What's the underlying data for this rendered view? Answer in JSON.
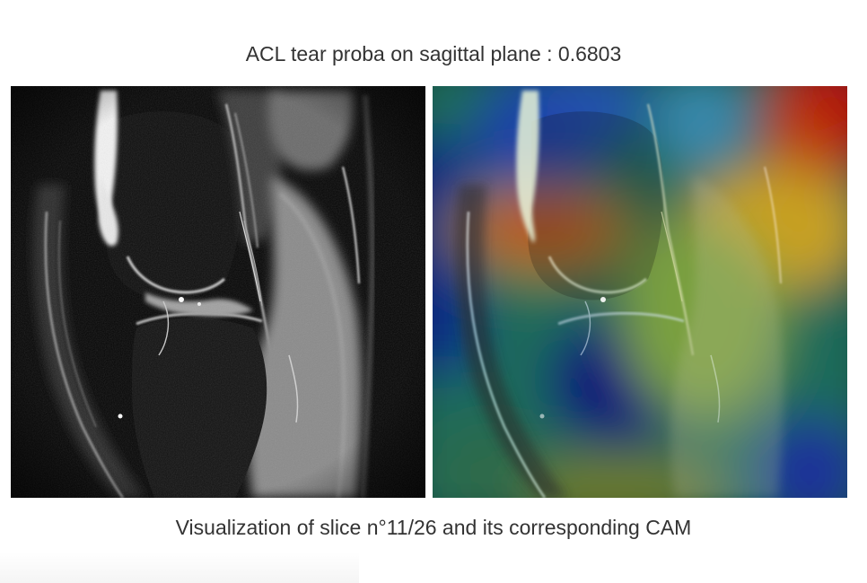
{
  "header": {
    "title": "ACL tear proba on sagittal plane : 0.6803"
  },
  "footer": {
    "caption": "Visualization of slice n°11/26 and its corresponding CAM"
  },
  "images": {
    "left": {
      "icon": "mri-slice-image"
    },
    "right": {
      "icon": "cam-heatmap-overlay-image"
    }
  }
}
